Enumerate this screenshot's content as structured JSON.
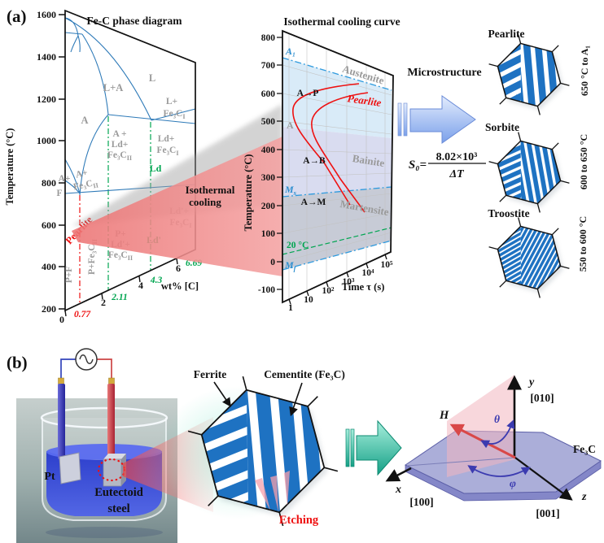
{
  "colors": {
    "stripe_blue": "#1e72c2",
    "phase_line_blue": "#2e7ab8",
    "gray_label": "#9a9a9a",
    "green": "#00a550",
    "red": "#ee1111",
    "band_austenite": "#d9ebf8",
    "band_bainite": "#d9dcf0",
    "band_martensite": "#c7cbd6",
    "dashdot_blue": "#2e9ade",
    "arrow_pink": "#ef8787",
    "arrow_blue_light": "#dfe9fc",
    "arrow_blue_dark": "#6f97e6",
    "arrow_teal_light": "#9bead9",
    "arrow_teal_dark": "#17a78c",
    "plate_lavender": "#abaed9",
    "plane_pink": "#f3b6bf",
    "liquid_blue": "#2a3fd8"
  },
  "panel_a": {
    "tag": "(a)",
    "phase_diagram": {
      "title": "Fe-C phase diagram",
      "y_label": "Temperature (°C)",
      "y_ticks": [
        "1600",
        "1400",
        "1200",
        "1000",
        "800",
        "600",
        "400",
        "200"
      ],
      "x_label": "wt% [C]",
      "x_ticks": [
        "0",
        "2",
        "4",
        "6"
      ],
      "x_special_red": "0.77",
      "x_special_green": [
        "2.11",
        "4.3",
        "6.69"
      ],
      "regions": {
        "L": "L",
        "LA": "L+A",
        "A": "A",
        "L_Fe3C1": [
          "L+",
          "Fe₃C{I}"
        ],
        "A_Ld_Fe3C2": [
          "A +",
          "Ld+",
          "Fe₃C{II}"
        ],
        "Ld_Fe3C1": [
          "Ld+",
          "Fe₃C{I}"
        ],
        "A_Fe3C2": [
          "A+",
          "Fe₃C{II}"
        ],
        "A_F": [
          "A+",
          "F"
        ],
        "P_F": "P+F",
        "P_Fe3C2": "P+Fe₃C{II}",
        "P_Ld_Fe3C2": [
          "P+",
          "Ld'+",
          "Fe₃C{II}"
        ],
        "Ld2_Fe3C1": [
          "Ld'+",
          "Fe₃C{I}"
        ],
        "Ld": "Ld",
        "Ld2": "Ld'",
        "pearlite": "Pearlite"
      },
      "annotation": [
        "Isothermal",
        "cooling"
      ]
    },
    "ttt": {
      "title": "Isothermal cooling curve",
      "y_label": "Temperature (°C)",
      "y_ticks": [
        "800",
        "700",
        "600",
        "500",
        "400",
        "300",
        "200",
        "100",
        "0",
        "-100"
      ],
      "x_label": "Time τ (s)",
      "x_ticks": [
        "1",
        "10",
        "10²",
        "10³",
        "10⁴",
        "10⁵"
      ],
      "labels": {
        "A1": "A₁",
        "austenite": "Austenite",
        "AP": "A→P",
        "pearlite": "Pearlite",
        "A": "A",
        "AB": "A→B",
        "bainite": "Bainite",
        "Ms": "M{s}",
        "AM": "A→M",
        "martensite": "Martensite",
        "temp20": "20 °C",
        "Mf": "M{f}"
      }
    },
    "microstructure": {
      "title": "Microstructure",
      "formula": {
        "lhs": "S₀=",
        "numerator": "8.02×10³",
        "denominator": "ΔT"
      },
      "items": [
        {
          "name": "Pearlite",
          "range": "650 °C to A₁"
        },
        {
          "name": "Sorbite",
          "range": "600 to 650 °C"
        },
        {
          "name": "Troostite",
          "range": "550 to 600 °C"
        }
      ]
    }
  },
  "panel_b": {
    "tag": "(b)",
    "cell": {
      "electrode": "Pt",
      "sample": [
        "Eutectoid",
        "steel"
      ]
    },
    "grain": {
      "ferrite": "Ferrite",
      "cementite": "Cementite (Fe₃C)",
      "etching": "Etching"
    },
    "crystal": {
      "field": "H",
      "theta": "θ",
      "phi": "φ",
      "y": "y",
      "y_index": "[010]",
      "x": "x",
      "x_index": "[100]",
      "z": "z",
      "z_index": "[001]",
      "name": "Fe₃C"
    }
  }
}
